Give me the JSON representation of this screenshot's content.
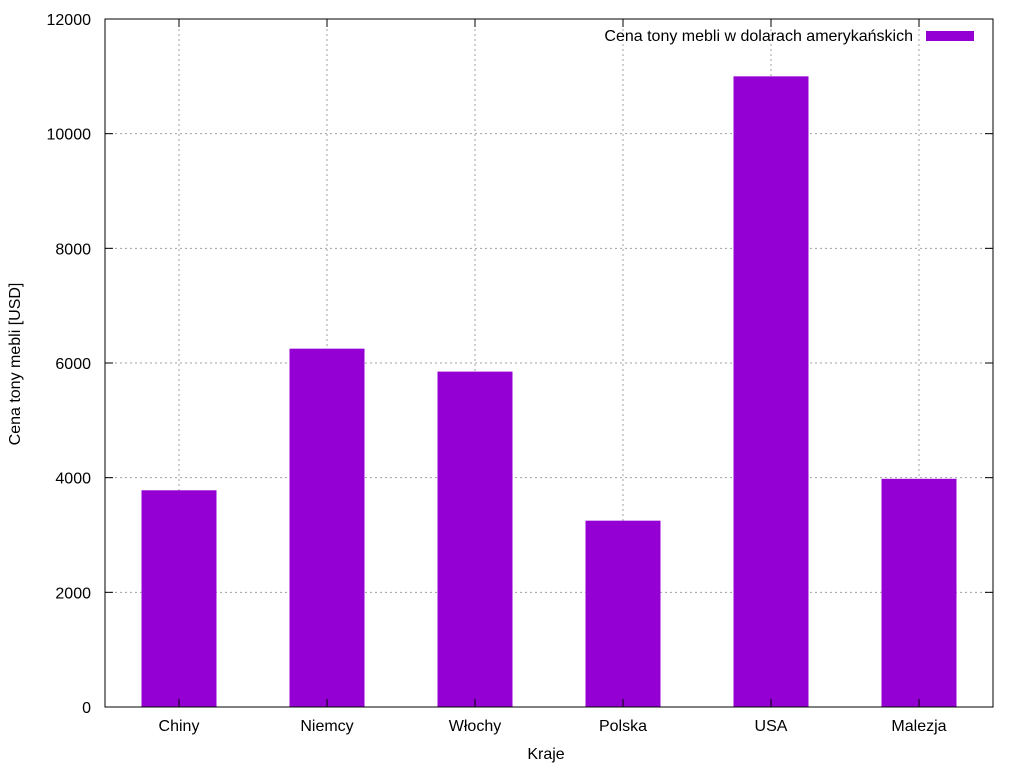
{
  "chart_data": {
    "type": "bar",
    "categories": [
      "Chiny",
      "Niemcy",
      "Włochy",
      "Polska",
      "USA",
      "Malezja"
    ],
    "series": [
      {
        "name": "Cena tony mebli w dolarach amerykańskich",
        "values": [
          3780,
          6250,
          5850,
          3250,
          11000,
          3980
        ],
        "color": "#9400d3"
      }
    ],
    "xlabel": "Kraje",
    "ylabel": "Cena tony mebli [USD]",
    "ylim": [
      0,
      12000
    ],
    "yticks": [
      "0",
      "2000",
      "4000",
      "6000",
      "8000",
      "10000",
      "12000"
    ],
    "grid": true,
    "legend_position": "top-right"
  }
}
